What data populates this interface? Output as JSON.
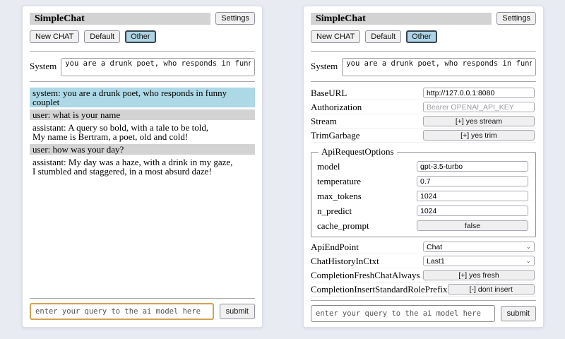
{
  "app": {
    "title": "SimpleChat",
    "settings_button": "Settings",
    "tabs": {
      "new_chat": "New CHAT",
      "default": "Default",
      "other": "Other"
    },
    "system_label": "System",
    "system_prompt": "you are a drunk poet, who responds in funny couplet",
    "query_placeholder": "enter your query to the ai model here",
    "submit_label": "submit"
  },
  "chat": {
    "messages": [
      {
        "role": "system",
        "text": "system: you are a drunk poet, who responds in funny couplet"
      },
      {
        "role": "user",
        "text": "user: what is your name"
      },
      {
        "role": "assistant",
        "text": "assistant: A query so bold, with a tale to be told,\nMy name is Bertram, a poet, old and cold!"
      },
      {
        "role": "user",
        "text": "user: how was your day?"
      },
      {
        "role": "assistant",
        "text": "assistant: My day was a haze, with a drink in my gaze,\nI stumbled and staggered, in a most absurd daze!"
      }
    ]
  },
  "settings": {
    "base_url": {
      "label": "BaseURL",
      "value": "http://127.0.0.1:8080"
    },
    "authorization": {
      "label": "Authorization",
      "placeholder": "Bearer OPENAI_API_KEY"
    },
    "stream": {
      "label": "Stream",
      "value": "[+] yes stream"
    },
    "trim_garbage": {
      "label": "TrimGarbage",
      "value": "[+] yes trim"
    },
    "api_request_options": {
      "legend": "ApiRequestOptions",
      "model": {
        "label": "model",
        "value": "gpt-3.5-turbo"
      },
      "temperature": {
        "label": "temperature",
        "value": "0.7"
      },
      "max_tokens": {
        "label": "max_tokens",
        "value": "1024"
      },
      "n_predict": {
        "label": "n_predict",
        "value": "1024"
      },
      "cache_prompt": {
        "label": "cache_prompt",
        "value": "false"
      }
    },
    "api_endpoint": {
      "label": "ApiEndPoint",
      "value": "Chat"
    },
    "chat_history_in_ctxt": {
      "label": "ChatHistoryInCtxt",
      "value": "Last1"
    },
    "completion_fresh_chat_always": {
      "label": "CompletionFreshChatAlways",
      "value": "[+] yes fresh"
    },
    "completion_insert_standard_role_prefix": {
      "label": "CompletionInsertStandardRolePrefix",
      "value": "[-] dont insert"
    }
  },
  "colors": {
    "accent_tab": "#aed3e4",
    "system_msg_bg": "#add8e6",
    "user_msg_bg": "#d3d3d3",
    "query_focus_border": "#d2a353",
    "page_bg": "#e9ebf3"
  }
}
